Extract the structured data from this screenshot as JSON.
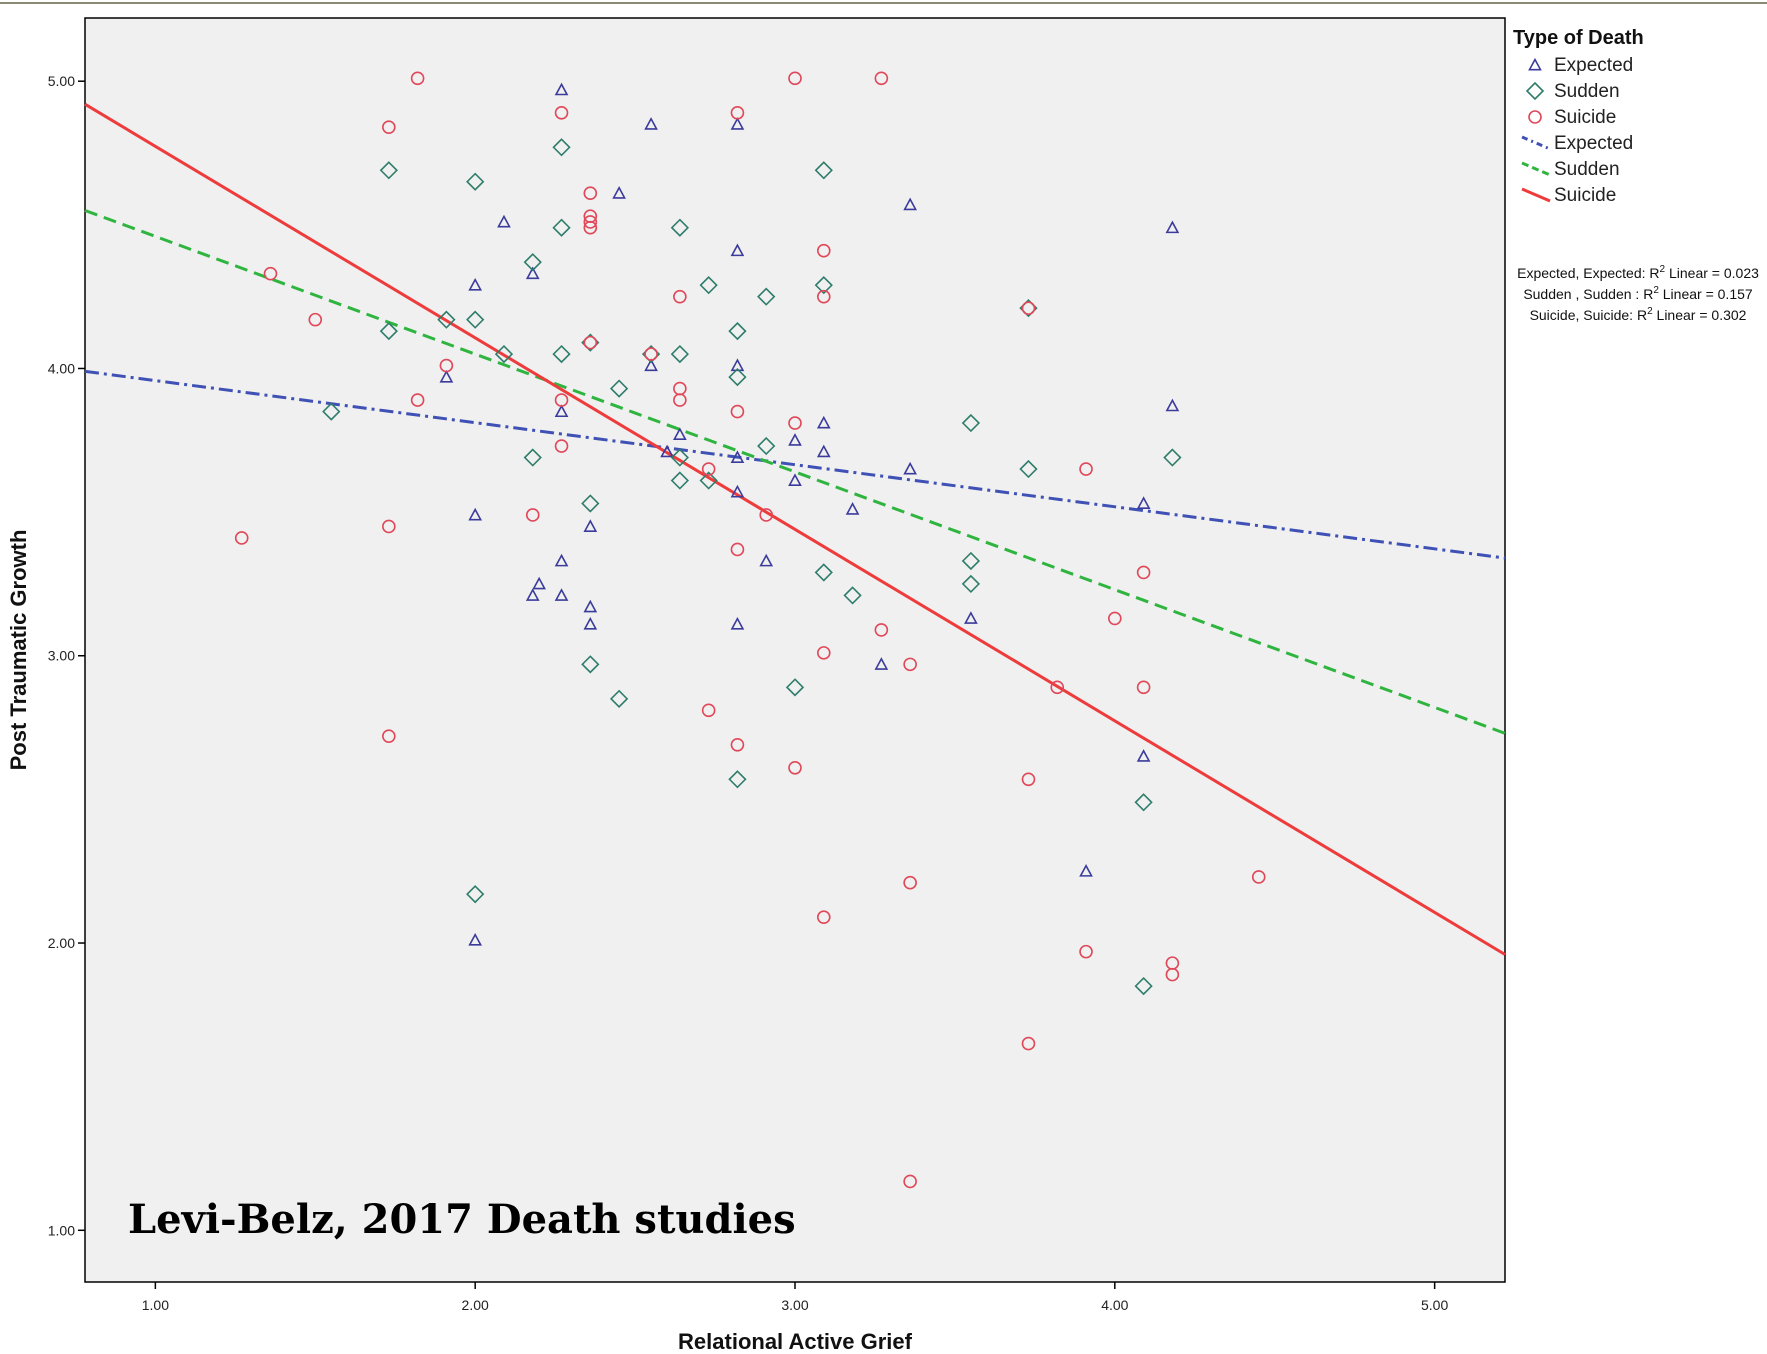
{
  "chart_data": {
    "type": "scatter",
    "xlabel": "Relational Active Grief",
    "ylabel": "Post Traumatic Growth",
    "xlim": [
      0.78,
      5.22
    ],
    "ylim": [
      0.82,
      5.22
    ],
    "x_ticks": [
      1.0,
      2.0,
      3.0,
      4.0,
      5.0
    ],
    "x_tick_labels": [
      "1.00",
      "2.00",
      "3.00",
      "4.00",
      "5.00"
    ],
    "y_ticks": [
      1.0,
      2.0,
      3.0,
      4.0,
      5.0
    ],
    "y_tick_labels": [
      "1.00",
      "2.00",
      "3.00",
      "4.00",
      "5.00"
    ],
    "grid": false,
    "legend": {
      "title": "Type of Death",
      "placement": "right",
      "marker_entries": [
        {
          "label": "Expected",
          "marker": "triangle",
          "color": "#3b3b9c"
        },
        {
          "label": "Sudden",
          "marker": "diamond",
          "color": "#2e7d6b"
        },
        {
          "label": "Suicide",
          "marker": "circle",
          "color": "#e0485a"
        }
      ],
      "line_entries": [
        {
          "label": "Expected",
          "style": "dashdot",
          "color": "#3f51b5"
        },
        {
          "label": "Sudden",
          "style": "dashed",
          "color": "#2fb53f"
        },
        {
          "label": "Suicide",
          "style": "solid",
          "color": "#ee3b3b"
        }
      ]
    },
    "rsq_labels": [
      {
        "prefix": "Expected, Expected: R",
        "suffix": " Linear = 0.023"
      },
      {
        "prefix": "Sudden , Sudden : R",
        "suffix": " Linear = 0.157"
      },
      {
        "prefix": "Suicide, Suicide: R",
        "suffix": " Linear = 0.302"
      }
    ],
    "fit_lines": [
      {
        "name": "Expected",
        "x": [
          0.78,
          5.22
        ],
        "y": [
          3.99,
          3.34
        ],
        "color": "#3f51b5",
        "dash": "14,5,3,5"
      },
      {
        "name": "Sudden",
        "x": [
          0.78,
          5.22
        ],
        "y": [
          4.55,
          2.73
        ],
        "color": "#2fb53f",
        "dash": "13,7"
      },
      {
        "name": "Suicide",
        "x": [
          0.78,
          5.22
        ],
        "y": [
          4.92,
          1.96
        ],
        "color": "#ee3b3b",
        "dash": ""
      }
    ],
    "series": [
      {
        "name": "Expected",
        "marker": "triangle",
        "color": "#3b3b9c",
        "points": [
          [
            2.27,
            4.97
          ],
          [
            2.55,
            4.85
          ],
          [
            2.82,
            4.85
          ],
          [
            2.45,
            4.61
          ],
          [
            2.09,
            4.51
          ],
          [
            2.82,
            4.41
          ],
          [
            3.36,
            4.57
          ],
          [
            4.18,
            4.49
          ],
          [
            2.0,
            4.29
          ],
          [
            2.18,
            4.33
          ],
          [
            2.82,
            4.01
          ],
          [
            2.55,
            4.01
          ],
          [
            1.91,
            3.97
          ],
          [
            2.27,
            3.85
          ],
          [
            2.64,
            3.77
          ],
          [
            2.6,
            3.71
          ],
          [
            2.82,
            3.69
          ],
          [
            3.0,
            3.75
          ],
          [
            3.09,
            3.81
          ],
          [
            3.09,
            3.71
          ],
          [
            3.36,
            3.65
          ],
          [
            3.0,
            3.61
          ],
          [
            2.82,
            3.57
          ],
          [
            3.18,
            3.51
          ],
          [
            4.18,
            3.87
          ],
          [
            4.09,
            3.53
          ],
          [
            2.0,
            3.49
          ],
          [
            2.36,
            3.45
          ],
          [
            2.27,
            3.33
          ],
          [
            2.91,
            3.33
          ],
          [
            2.2,
            3.25
          ],
          [
            2.18,
            3.21
          ],
          [
            2.27,
            3.21
          ],
          [
            2.36,
            3.17
          ],
          [
            2.36,
            3.11
          ],
          [
            2.82,
            3.11
          ],
          [
            3.55,
            3.13
          ],
          [
            3.27,
            2.97
          ],
          [
            4.09,
            2.65
          ],
          [
            3.91,
            2.25
          ],
          [
            2.0,
            2.01
          ]
        ]
      },
      {
        "name": "Sudden",
        "marker": "diamond",
        "color": "#2e7d6b",
        "points": [
          [
            1.73,
            4.69
          ],
          [
            2.0,
            4.65
          ],
          [
            2.27,
            4.77
          ],
          [
            3.09,
            4.69
          ],
          [
            2.27,
            4.49
          ],
          [
            2.64,
            4.49
          ],
          [
            2.18,
            4.37
          ],
          [
            2.73,
            4.29
          ],
          [
            3.09,
            4.29
          ],
          [
            2.91,
            4.25
          ],
          [
            1.73,
            4.13
          ],
          [
            1.91,
            4.17
          ],
          [
            2.0,
            4.17
          ],
          [
            2.82,
            4.13
          ],
          [
            2.09,
            4.05
          ],
          [
            2.27,
            4.05
          ],
          [
            2.36,
            4.09
          ],
          [
            2.55,
            4.05
          ],
          [
            2.64,
            4.05
          ],
          [
            2.82,
            3.97
          ],
          [
            2.45,
            3.93
          ],
          [
            1.55,
            3.85
          ],
          [
            3.55,
            3.81
          ],
          [
            2.18,
            3.69
          ],
          [
            2.91,
            3.73
          ],
          [
            2.64,
            3.69
          ],
          [
            3.73,
            3.65
          ],
          [
            4.18,
            3.69
          ],
          [
            2.36,
            3.53
          ],
          [
            2.64,
            3.61
          ],
          [
            2.73,
            3.61
          ],
          [
            3.55,
            3.33
          ],
          [
            3.09,
            3.29
          ],
          [
            3.55,
            3.25
          ],
          [
            3.18,
            3.21
          ],
          [
            2.36,
            2.97
          ],
          [
            2.45,
            2.85
          ],
          [
            3.0,
            2.89
          ],
          [
            2.82,
            2.57
          ],
          [
            4.09,
            2.49
          ],
          [
            2.0,
            2.17
          ],
          [
            4.09,
            1.85
          ],
          [
            3.73,
            4.21
          ]
        ]
      },
      {
        "name": "Suicide",
        "marker": "circle",
        "color": "#e0485a",
        "points": [
          [
            1.82,
            5.01
          ],
          [
            3.0,
            5.01
          ],
          [
            3.27,
            5.01
          ],
          [
            2.27,
            4.89
          ],
          [
            2.82,
            4.89
          ],
          [
            1.73,
            4.84
          ],
          [
            2.36,
            4.61
          ],
          [
            2.36,
            4.53
          ],
          [
            2.36,
            4.51
          ],
          [
            2.36,
            4.49
          ],
          [
            3.09,
            4.41
          ],
          [
            1.36,
            4.33
          ],
          [
            2.64,
            4.25
          ],
          [
            3.09,
            4.25
          ],
          [
            3.73,
            4.21
          ],
          [
            1.5,
            4.17
          ],
          [
            2.36,
            4.09
          ],
          [
            2.55,
            4.05
          ],
          [
            1.91,
            4.01
          ],
          [
            2.64,
            3.93
          ],
          [
            1.82,
            3.89
          ],
          [
            2.27,
            3.89
          ],
          [
            2.64,
            3.89
          ],
          [
            2.82,
            3.85
          ],
          [
            3.0,
            3.81
          ],
          [
            2.27,
            3.73
          ],
          [
            2.73,
            3.65
          ],
          [
            3.91,
            3.65
          ],
          [
            2.18,
            3.49
          ],
          [
            2.91,
            3.49
          ],
          [
            1.73,
            3.45
          ],
          [
            1.27,
            3.41
          ],
          [
            2.82,
            3.37
          ],
          [
            4.09,
            3.29
          ],
          [
            4.0,
            3.13
          ],
          [
            3.27,
            3.09
          ],
          [
            3.09,
            3.01
          ],
          [
            3.36,
            2.97
          ],
          [
            3.82,
            2.89
          ],
          [
            4.09,
            2.89
          ],
          [
            2.73,
            2.81
          ],
          [
            1.73,
            2.72
          ],
          [
            2.82,
            2.69
          ],
          [
            3.0,
            2.61
          ],
          [
            3.73,
            2.57
          ],
          [
            4.45,
            2.23
          ],
          [
            3.36,
            2.21
          ],
          [
            3.09,
            2.09
          ],
          [
            3.91,
            1.97
          ],
          [
            4.18,
            1.93
          ],
          [
            4.18,
            1.89
          ],
          [
            3.73,
            1.65
          ],
          [
            3.36,
            1.17
          ]
        ]
      }
    ],
    "annotation": "Levi-Belz, 2017 Death studies"
  }
}
